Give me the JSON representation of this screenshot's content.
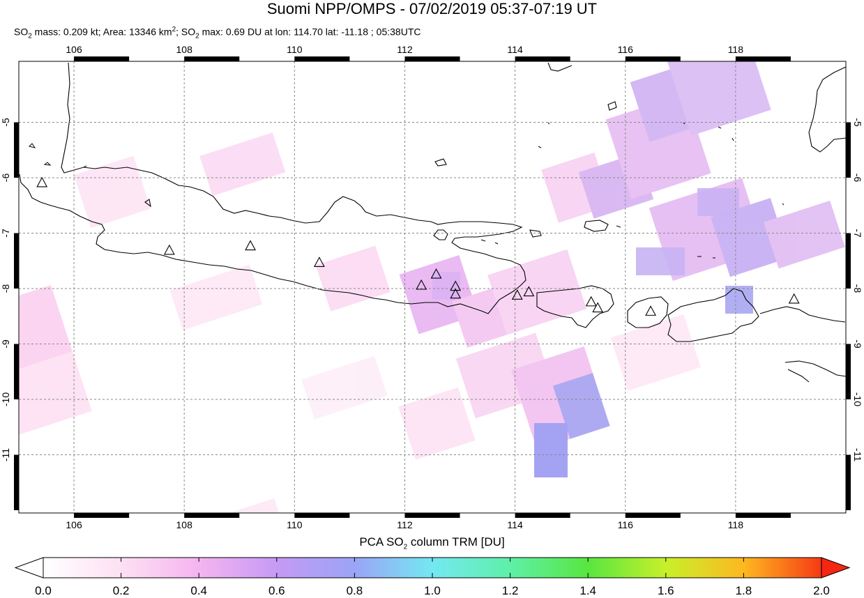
{
  "header": {
    "title": "Suomi NPP/OMPS - 07/02/2019 05:37-07:19 UT",
    "mass_label": "SO",
    "mass_sub": "2",
    "mass_text": " mass: 0.209 kt; Area: 13346 km",
    "area_sup": "2",
    "max_label": "; SO",
    "max_sub": "2",
    "max_text": " max: 0.69 DU at lon: 114.70 lat: -11.18 ; 05:38UTC"
  },
  "map": {
    "lon_range": [
      105.0,
      120.0
    ],
    "lat_range": [
      -12.05,
      -3.9
    ],
    "lon_ticks": [
      "106",
      "108",
      "110",
      "112",
      "114",
      "116",
      "118"
    ],
    "lat_ticks": [
      "-5",
      "-6",
      "-7",
      "-8",
      "-9",
      "-10",
      "-11"
    ],
    "grid": true,
    "volcanoes": [
      {
        "lon": 105.42,
        "lat": -6.1
      },
      {
        "lon": 107.73,
        "lat": -7.32
      },
      {
        "lon": 109.2,
        "lat": -7.24
      },
      {
        "lon": 110.45,
        "lat": -7.54
      },
      {
        "lon": 112.3,
        "lat": -7.95
      },
      {
        "lon": 112.57,
        "lat": -7.75
      },
      {
        "lon": 112.92,
        "lat": -7.97
      },
      {
        "lon": 112.92,
        "lat": -8.11
      },
      {
        "lon": 114.04,
        "lat": -8.13
      },
      {
        "lon": 114.25,
        "lat": -8.07
      },
      {
        "lon": 115.38,
        "lat": -8.25
      },
      {
        "lon": 115.5,
        "lat": -8.36
      },
      {
        "lon": 116.46,
        "lat": -8.42
      },
      {
        "lon": 119.06,
        "lat": -8.2
      }
    ]
  },
  "colorbar": {
    "title_main": "PCA SO",
    "title_sub": "2",
    "title_rest": " column TRM [DU]",
    "labels": [
      "0.0",
      "0.2",
      "0.4",
      "0.6",
      "0.8",
      "1.0",
      "1.2",
      "1.4",
      "1.6",
      "1.8",
      "2.0"
    ],
    "range": [
      0.0,
      2.0
    ]
  }
}
